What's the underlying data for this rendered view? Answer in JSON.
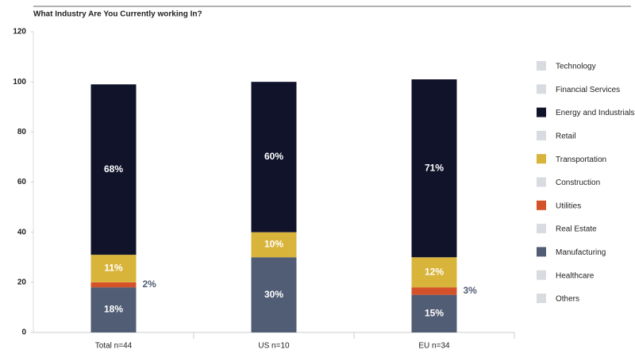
{
  "chart_data": {
    "type": "stacked_bar",
    "title": "What Industry Are You Currently working In?",
    "categories": [
      "Total n=44",
      "US n=10",
      "EU n=34"
    ],
    "ylim": [
      0,
      120
    ],
    "yticks": [
      0,
      20,
      40,
      60,
      80,
      100,
      120
    ],
    "legend": "right",
    "series": [
      {
        "name": "Technology",
        "color": "#d8dbe0",
        "values": [
          0,
          0,
          0
        ]
      },
      {
        "name": "Financial Services",
        "color": "#d8dbe0",
        "values": [
          0,
          0,
          0
        ]
      },
      {
        "name": "Energy and Industrials",
        "color": "#11132b",
        "values": [
          68,
          60,
          71
        ],
        "value_labels": [
          "68%",
          "60%",
          "71%"
        ]
      },
      {
        "name": "Retail",
        "color": "#d8dbe0",
        "values": [
          0,
          0,
          0
        ]
      },
      {
        "name": "Transportation",
        "color": "#d9b43b",
        "values": [
          11,
          10,
          12
        ],
        "value_labels": [
          "11%",
          "10%",
          "12%"
        ]
      },
      {
        "name": "Construction",
        "color": "#d8dbe0",
        "values": [
          0,
          0,
          0
        ]
      },
      {
        "name": "Utilities",
        "color": "#d4522a",
        "values": [
          2,
          0,
          3
        ],
        "value_labels": [
          "2%",
          null,
          "3%"
        ]
      },
      {
        "name": "Real Estate",
        "color": "#d8dbe0",
        "values": [
          0,
          0,
          0
        ]
      },
      {
        "name": "Manufacturing",
        "color": "#515d74",
        "values": [
          18,
          30,
          15
        ],
        "value_labels": [
          "18%",
          "30%",
          "15%"
        ]
      },
      {
        "name": "Healthcare",
        "color": "#d8dbe0",
        "values": [
          0,
          0,
          0
        ]
      },
      {
        "name": "Others",
        "color": "#d8dbe0",
        "values": [
          0,
          0,
          0
        ]
      }
    ]
  }
}
